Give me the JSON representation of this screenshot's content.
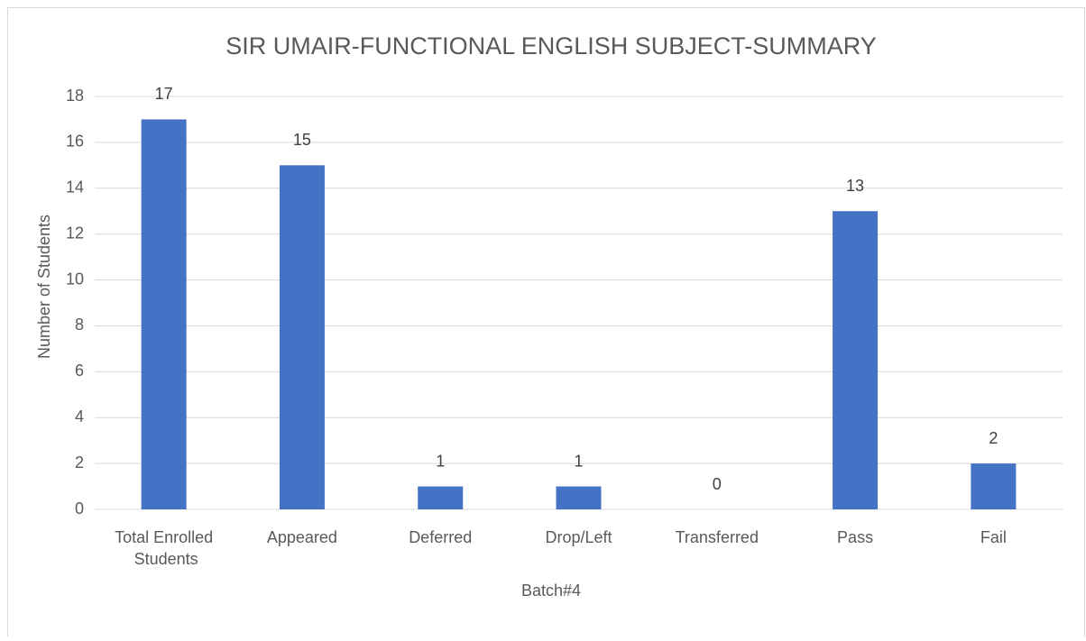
{
  "chart_data": {
    "type": "bar",
    "title": "SIR UMAIR-FUNCTIONAL ENGLISH SUBJECT-SUMMARY",
    "x_label": "Batch#4",
    "y_label": "Number of Students",
    "categories": [
      "Total Enrolled Students",
      "Appeared",
      "Deferred",
      "Drop/Left",
      "Transferred",
      "Pass",
      "Fail"
    ],
    "values": [
      17,
      15,
      1,
      1,
      0,
      13,
      2
    ],
    "color": "#4472c4",
    "ylim": [
      0,
      18
    ],
    "yticks": [
      0,
      2,
      4,
      6,
      8,
      10,
      12,
      14,
      16,
      18
    ],
    "grid": true
  }
}
